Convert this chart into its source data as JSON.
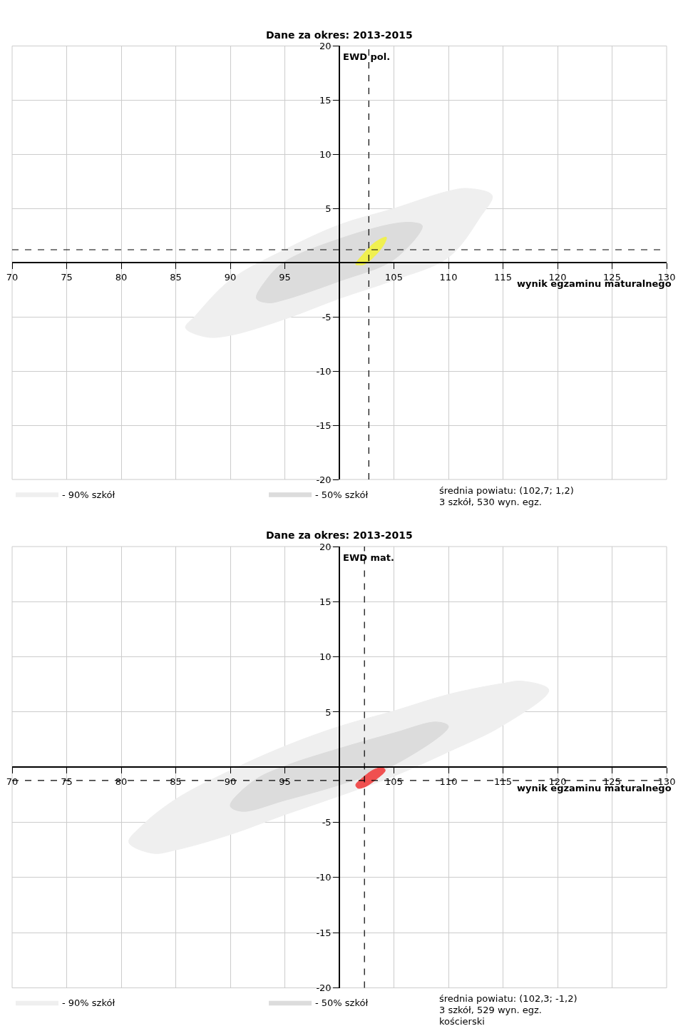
{
  "chart_data": [
    {
      "type": "area",
      "title": "Dane za okres: 2013-2015",
      "xlabel": "wynik egzaminu maturalnego",
      "ylabel": "EWD pol.",
      "xlim": [
        70,
        130
      ],
      "ylim": [
        -20,
        20
      ],
      "xticks": [
        70,
        75,
        80,
        85,
        90,
        95,
        105,
        110,
        115,
        120,
        125,
        130
      ],
      "yticks": [
        -20,
        -15,
        -10,
        -5,
        5,
        10,
        15,
        20
      ],
      "grid": true,
      "legend": "bottom",
      "ref_lines": [
        {
          "axis": "x",
          "value": 102.7,
          "color": "#000000",
          "line_style": "dashed"
        },
        {
          "axis": "y",
          "value": 1.2,
          "color": "#000000",
          "line_style": "dashed"
        }
      ],
      "annotations": [
        "średnia powiatu: (102,7; 1,2)",
        "3 szkół, 530 wyn. egz."
      ],
      "series": [
        {
          "name": "- 90% szkół",
          "color": "#efefef",
          "x": [
            85.9,
            86.8,
            90,
            95,
            100,
            105,
            110,
            111.8,
            114.0,
            112.9,
            110,
            105,
            100,
            95,
            90,
            87.8,
            85.9
          ],
          "values": [
            -6.0,
            -4.9,
            -1.6,
            1.2,
            3.5,
            5.0,
            6.6,
            6.85,
            6.2,
            4.2,
            0.5,
            -1.6,
            -3.3,
            -5.2,
            -6.7,
            -6.85,
            -6.0
          ]
        },
        {
          "name": "- 50% szkół",
          "color": "#dcdcdc",
          "x": [
            92.4,
            93.3,
            95,
            100,
            105,
            106.8,
            107.6,
            105,
            100,
            95,
            93.5,
            92.4
          ],
          "values": [
            -3.3,
            -1.6,
            0.1,
            2.2,
            3.6,
            3.7,
            3.4,
            0.3,
            -1.7,
            -3.4,
            -3.7,
            -3.3
          ]
        },
        {
          "color": "#f0f050",
          "x": [
            101.5,
            102.2,
            103.3,
            104.3,
            104.2,
            103.5,
            102.3,
            101.8,
            101.5
          ],
          "values": [
            -0.15,
            0.8,
            1.9,
            2.35,
            1.9,
            0.9,
            -0.15,
            -0.2,
            -0.15
          ]
        }
      ]
    },
    {
      "type": "area",
      "title": "Dane za okres: 2013-2015",
      "xlabel": "wynik egzaminu maturalnego",
      "ylabel": "EWD mat.",
      "xlim": [
        70,
        130
      ],
      "ylim": [
        -20,
        20
      ],
      "xticks": [
        70,
        75,
        80,
        85,
        90,
        95,
        105,
        110,
        115,
        120,
        125,
        130
      ],
      "yticks": [
        -20,
        -15,
        -10,
        -5,
        5,
        10,
        15,
        20
      ],
      "grid": true,
      "legend": "bottom",
      "ref_lines": [
        {
          "axis": "x",
          "value": 102.3,
          "color": "#000000",
          "line_style": "dashed"
        },
        {
          "axis": "y",
          "value": -1.2,
          "color": "#000000",
          "line_style": "dashed"
        }
      ],
      "annotations": [
        "średnia powiatu: (102,3; -1,2)",
        "3 szkół, 529 wyn. egz.",
        "kościerski"
      ],
      "series": [
        {
          "name": "- 90% szkół",
          "color": "#efefef",
          "x": [
            80.7,
            81.9,
            85,
            90,
            95,
            100,
            105,
            110,
            115,
            116.8,
            119.2,
            115,
            110,
            105,
            100,
            95,
            90,
            85,
            82.9,
            80.7
          ],
          "values": [
            -6.8,
            -5.3,
            -2.9,
            -0.3,
            1.9,
            3.7,
            5.1,
            6.6,
            7.6,
            7.8,
            7.0,
            3.8,
            1.4,
            -0.8,
            -2.6,
            -4.3,
            -6.1,
            -7.5,
            -7.8,
            -6.8
          ]
        },
        {
          "name": "- 50% szkół",
          "color": "#dcdcdc",
          "x": [
            90.0,
            92.2,
            95,
            100,
            105,
            108.9,
            110,
            105,
            100,
            95,
            91.1,
            90.0
          ],
          "values": [
            -3.5,
            -1.2,
            0.1,
            1.7,
            3.1,
            4.1,
            3.7,
            0.2,
            -1.6,
            -3.0,
            -4.0,
            -3.5
          ]
        },
        {
          "color": "#f05050",
          "x": [
            101.5,
            102.2,
            103.2,
            104.0,
            104.2,
            103.5,
            102.3,
            101.7,
            101.5
          ],
          "values": [
            -1.6,
            -0.9,
            -0.2,
            -0.05,
            -0.3,
            -1.0,
            -1.8,
            -1.9,
            -1.6
          ]
        }
      ]
    }
  ]
}
